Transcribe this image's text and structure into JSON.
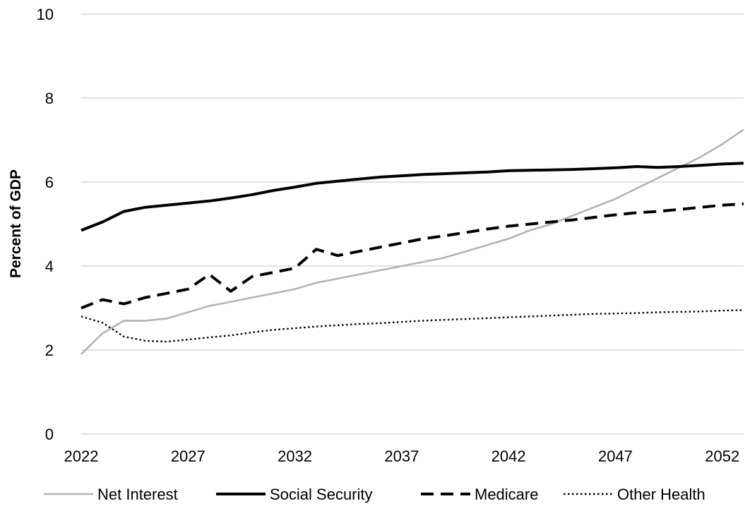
{
  "chart_data": {
    "type": "line",
    "title": "",
    "xlabel": "",
    "ylabel": "Percent of GDP",
    "xlim": [
      2022,
      2053
    ],
    "ylim": [
      0,
      10
    ],
    "x_ticks": [
      "2022",
      "2027",
      "2032",
      "2037",
      "2042",
      "2047",
      "2052"
    ],
    "y_ticks": [
      "0",
      "2",
      "4",
      "6",
      "8",
      "10"
    ],
    "grid": "horizontal",
    "legend_position": "bottom",
    "x": [
      2022,
      2023,
      2024,
      2025,
      2026,
      2027,
      2028,
      2029,
      2030,
      2031,
      2032,
      2033,
      2034,
      2035,
      2036,
      2037,
      2038,
      2039,
      2040,
      2041,
      2042,
      2043,
      2044,
      2045,
      2046,
      2047,
      2048,
      2049,
      2050,
      2051,
      2052,
      2053
    ],
    "series": [
      {
        "name": "Net Interest",
        "color": "#b3b3b3",
        "dash": "solid",
        "values": [
          1.9,
          2.4,
          2.7,
          2.7,
          2.75,
          2.9,
          3.05,
          3.15,
          3.25,
          3.35,
          3.45,
          3.6,
          3.7,
          3.8,
          3.9,
          4.0,
          4.1,
          4.2,
          4.35,
          4.5,
          4.65,
          4.85,
          5.0,
          5.2,
          5.4,
          5.6,
          5.85,
          6.1,
          6.35,
          6.6,
          6.9,
          7.25
        ]
      },
      {
        "name": "Social Security",
        "color": "#000000",
        "dash": "solid",
        "values": [
          4.85,
          5.05,
          5.3,
          5.4,
          5.45,
          5.5,
          5.55,
          5.62,
          5.7,
          5.8,
          5.88,
          5.97,
          6.02,
          6.07,
          6.12,
          6.15,
          6.18,
          6.2,
          6.22,
          6.24,
          6.27,
          6.28,
          6.29,
          6.3,
          6.32,
          6.34,
          6.37,
          6.35,
          6.37,
          6.4,
          6.43,
          6.45
        ]
      },
      {
        "name": "Medicare",
        "color": "#000000",
        "dash": "dashed",
        "values": [
          3.0,
          3.2,
          3.1,
          3.25,
          3.35,
          3.45,
          3.8,
          3.4,
          3.75,
          3.85,
          3.95,
          4.4,
          4.25,
          4.35,
          4.45,
          4.55,
          4.65,
          4.72,
          4.8,
          4.88,
          4.95,
          5.0,
          5.05,
          5.1,
          5.16,
          5.22,
          5.27,
          5.3,
          5.35,
          5.4,
          5.45,
          5.48
        ]
      },
      {
        "name": "Other Health",
        "color": "#000000",
        "dash": "dotted",
        "values": [
          2.8,
          2.65,
          2.32,
          2.22,
          2.2,
          2.25,
          2.3,
          2.35,
          2.42,
          2.48,
          2.52,
          2.56,
          2.59,
          2.62,
          2.64,
          2.67,
          2.7,
          2.72,
          2.74,
          2.76,
          2.78,
          2.8,
          2.82,
          2.84,
          2.86,
          2.87,
          2.88,
          2.9,
          2.91,
          2.92,
          2.94,
          2.95
        ]
      }
    ]
  }
}
